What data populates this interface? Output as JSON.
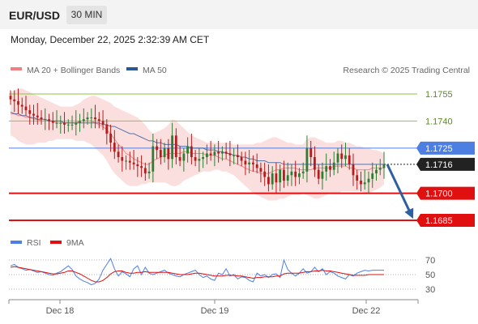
{
  "header": {
    "pair": "EUR/USD",
    "timeframe": "30 MIN"
  },
  "datetime": "Monday, December 22, 2025 2:32:39 AM CET",
  "legend": {
    "bollinger": "MA 20 + Bollinger Bands",
    "ma50": "MA 50"
  },
  "copyright": "Research © 2025 Trading Central",
  "rsi_legend": {
    "rsi": "RSI",
    "ma": "9MA"
  },
  "colors": {
    "bollinger": "#f08080",
    "ma50": "#2b5797",
    "resistance_green": "#8dc63f",
    "blue_line": "#4d7fe3",
    "support_red": "#e01010",
    "arrow": "#2e5fa3",
    "rsi": "#4d7fe3",
    "rsi_ma": "#e01010",
    "candle_up": "#2e7d32",
    "candle_down": "#b71c1c"
  },
  "chart_data": [
    {
      "type": "line",
      "title": "",
      "x_labels": [
        "Dec 18",
        "Dec 19",
        "Dec 22"
      ],
      "ylim": [
        1.1675,
        1.1775
      ],
      "levels": [
        {
          "label": "1.1755",
          "value": 1.1755,
          "kind": "resistance"
        },
        {
          "label": "1.1740",
          "value": 1.174,
          "kind": "resistance"
        },
        {
          "label": "1.1725",
          "value": 1.1725,
          "kind": "pivot"
        },
        {
          "label": "1.1716",
          "value": 1.1716,
          "kind": "last"
        },
        {
          "label": "1.1700",
          "value": 1.17,
          "kind": "support"
        },
        {
          "label": "1.1685",
          "value": 1.1685,
          "kind": "target"
        }
      ],
      "close": [
        1.1752,
        1.1751,
        1.1749,
        1.1748,
        1.1746,
        1.1744,
        1.1743,
        1.1742,
        1.1741,
        1.1741,
        1.174,
        1.1739,
        1.1739,
        1.1739,
        1.1738,
        1.1738,
        1.1738,
        1.1739,
        1.174,
        1.1741,
        1.1742,
        1.1742,
        1.1741,
        1.174,
        1.1738,
        1.1733,
        1.1728,
        1.1723,
        1.172,
        1.1718,
        1.1718,
        1.1717,
        1.1716,
        1.1715,
        1.1714,
        1.1711,
        1.1712,
        1.1726,
        1.1724,
        1.172,
        1.1725,
        1.1719,
        1.1732,
        1.172,
        1.1718,
        1.1722,
        1.1726,
        1.172,
        1.1718,
        1.1719,
        1.172,
        1.1722,
        1.1721,
        1.1723,
        1.1722,
        1.1723,
        1.1722,
        1.1721,
        1.1721,
        1.172,
        1.1718,
        1.1716,
        1.1717,
        1.1716,
        1.1714,
        1.1712,
        1.1709,
        1.1705,
        1.1711,
        1.1706,
        1.1713,
        1.1707,
        1.171,
        1.1712,
        1.1709,
        1.1711,
        1.1712,
        1.1725,
        1.172,
        1.1713,
        1.1708,
        1.1712,
        1.1715,
        1.1713,
        1.1717,
        1.1722,
        1.1719,
        1.1721,
        1.1716,
        1.171,
        1.1707,
        1.1705,
        1.1706,
        1.1708,
        1.1711,
        1.1713,
        1.1714,
        1.1716
      ],
      "ma20": [
        1.1744,
        1.1744,
        1.1743,
        1.1743,
        1.1742,
        1.1742,
        1.1741,
        1.1741,
        1.174,
        1.174,
        1.174,
        1.174,
        1.1739,
        1.1739,
        1.1739,
        1.1739,
        1.1739,
        1.1739,
        1.174,
        1.174,
        1.174,
        1.174,
        1.1739,
        1.1738,
        1.1737,
        1.1735,
        1.1733,
        1.173,
        1.1727,
        1.1725,
        1.1722,
        1.1721,
        1.1719,
        1.1718,
        1.1717,
        1.1716,
        1.1716,
        1.1718,
        1.1719,
        1.172,
        1.1721,
        1.1722,
        1.1722,
        1.1722,
        1.1722,
        1.1723,
        1.1723,
        1.1722,
        1.1722,
        1.1722,
        1.1722,
        1.1721,
        1.1721,
        1.1721,
        1.172,
        1.1719,
        1.1719,
        1.1718,
        1.1717,
        1.1716,
        1.1715,
        1.1714,
        1.1713,
        1.1712,
        1.1712,
        1.1711,
        1.1711,
        1.1711,
        1.1712,
        1.1713,
        1.1713,
        1.1714,
        1.1714,
        1.1714,
        1.1714,
        1.1713,
        1.1713,
        1.1713,
        1.1713,
        1.1714,
        1.1714,
        1.1714,
        1.1714,
        1.1714,
        1.1715,
        1.1715,
        1.1715,
        1.1715,
        1.1714,
        1.1714,
        1.1713,
        1.1713,
        1.1713,
        1.1713,
        1.1714,
        1.1714,
        1.1714,
        1.1714
      ],
      "bb_upper": [
        1.1756,
        1.1757,
        1.1758,
        1.1758,
        1.1757,
        1.1756,
        1.1755,
        1.1754,
        1.1753,
        1.1752,
        1.1751,
        1.175,
        1.1749,
        1.1748,
        1.1748,
        1.1748,
        1.1748,
        1.1749,
        1.175,
        1.1752,
        1.1753,
        1.1754,
        1.1754,
        1.1753,
        1.1752,
        1.1751,
        1.175,
        1.1748,
        1.1747,
        1.1746,
        1.1745,
        1.1744,
        1.1743,
        1.1742,
        1.174,
        1.1738,
        1.1735,
        1.1733,
        1.1734,
        1.1735,
        1.1736,
        1.1738,
        1.1741,
        1.174,
        1.1738,
        1.1736,
        1.1734,
        1.1732,
        1.1731,
        1.173,
        1.1729,
        1.1728,
        1.1728,
        1.1728,
        1.1728,
        1.1728,
        1.1728,
        1.1728,
        1.1727,
        1.1727,
        1.1727,
        1.1727,
        1.1727,
        1.1727,
        1.1728,
        1.1728,
        1.1729,
        1.173,
        1.1731,
        1.1731,
        1.173,
        1.1729,
        1.1728,
        1.1728,
        1.1727,
        1.1727,
        1.1727,
        1.173,
        1.1731,
        1.1731,
        1.173,
        1.1729,
        1.1728,
        1.1728,
        1.1728,
        1.1729,
        1.1729,
        1.1728,
        1.1728,
        1.1727,
        1.1726,
        1.1726,
        1.1725,
        1.1725,
        1.1724,
        1.1724,
        1.1723,
        1.1722
      ],
      "bb_lower": [
        1.1732,
        1.1731,
        1.1729,
        1.1728,
        1.1727,
        1.1727,
        1.1727,
        1.1728,
        1.1728,
        1.1728,
        1.1729,
        1.1729,
        1.173,
        1.173,
        1.173,
        1.173,
        1.173,
        1.1729,
        1.1729,
        1.1729,
        1.1728,
        1.1727,
        1.1725,
        1.1723,
        1.1721,
        1.1718,
        1.1714,
        1.1711,
        1.1709,
        1.1707,
        1.1705,
        1.1704,
        1.1704,
        1.1704,
        1.1705,
        1.1705,
        1.1706,
        1.1706,
        1.1706,
        1.1706,
        1.1706,
        1.1705,
        1.1704,
        1.1704,
        1.1705,
        1.1707,
        1.1708,
        1.1709,
        1.171,
        1.1711,
        1.1712,
        1.1712,
        1.1712,
        1.1713,
        1.1713,
        1.1712,
        1.1712,
        1.1711,
        1.171,
        1.1708,
        1.1706,
        1.1704,
        1.1702,
        1.17,
        1.1699,
        1.1698,
        1.1697,
        1.1696,
        1.1696,
        1.1696,
        1.1697,
        1.1697,
        1.1698,
        1.1699,
        1.1699,
        1.1699,
        1.17,
        1.1699,
        1.1698,
        1.1697,
        1.1697,
        1.1698,
        1.1699,
        1.17,
        1.17,
        1.17,
        1.1701,
        1.1701,
        1.1701,
        1.1701,
        1.1701,
        1.1701,
        1.17,
        1.17,
        1.1701,
        1.1702,
        1.1703,
        1.1705
      ],
      "ma50": [
        1.1745,
        1.1744,
        1.1744,
        1.1743,
        1.1743,
        1.1742,
        1.1742,
        1.1741,
        1.1741,
        1.1741,
        1.174,
        1.174,
        1.174,
        1.174,
        1.1739,
        1.1739,
        1.1739,
        1.1739,
        1.1739,
        1.1739,
        1.1739,
        1.1739,
        1.1739,
        1.1739,
        1.1738,
        1.1738,
        1.1737,
        1.1737,
        1.1736,
        1.1735,
        1.1734,
        1.1733,
        1.1733,
        1.1732,
        1.1731,
        1.173,
        1.1729,
        1.1729,
        1.1728,
        1.1728,
        1.1727,
        1.1727,
        1.1727,
        1.1727,
        1.1726,
        1.1726,
        1.1726,
        1.1725,
        1.1725,
        1.1725,
        1.1725,
        1.1724,
        1.1724,
        1.1724,
        1.1723,
        1.1723,
        1.1722,
        1.1722,
        1.1721,
        1.1721,
        1.172,
        1.172,
        1.1719,
        1.1719,
        1.1718,
        1.1718,
        1.1718,
        1.1717,
        1.1717,
        1.1717,
        1.1717,
        1.1716,
        1.1716,
        1.1716,
        1.1716,
        1.1716,
        1.1716,
        1.1716,
        1.1716,
        1.1716,
        1.1716,
        1.1716,
        1.1716,
        1.1716,
        1.1716,
        1.1716,
        1.1716,
        1.1716,
        1.1716,
        1.1716,
        1.1716,
        1.1716,
        1.1716,
        1.1716,
        1.1716,
        1.1716,
        1.1716,
        1.1716
      ],
      "forecast": {
        "from": 1.1716,
        "to": 1.1685
      }
    },
    {
      "type": "line",
      "title": "",
      "ylim": [
        20,
        80
      ],
      "y_ticks": [
        70,
        50,
        30
      ],
      "rsi": [
        62,
        64,
        60,
        58,
        56,
        57,
        55,
        53,
        54,
        52,
        50,
        49,
        52,
        54,
        58,
        62,
        57,
        48,
        44,
        41,
        39,
        36,
        38,
        44,
        56,
        64,
        72,
        58,
        48,
        54,
        51,
        47,
        58,
        62,
        50,
        60,
        52,
        50,
        52,
        54,
        56,
        52,
        50,
        48,
        47,
        50,
        52,
        54,
        56,
        50,
        46,
        48,
        44,
        42,
        52,
        50,
        58,
        48,
        50,
        44,
        47,
        46,
        42,
        40,
        52,
        48,
        50,
        46,
        50,
        51,
        46,
        70,
        57,
        52,
        48,
        52,
        58,
        52,
        54,
        60,
        54,
        58,
        50,
        54,
        52,
        48,
        46,
        44,
        50,
        48,
        52,
        54,
        56,
        55,
        56,
        56,
        56,
        56
      ],
      "ma9": [
        60,
        61,
        60,
        59,
        58,
        57,
        56,
        55,
        54,
        53,
        52,
        51,
        51,
        52,
        53,
        55,
        55,
        53,
        51,
        48,
        45,
        42,
        40,
        40,
        42,
        46,
        51,
        54,
        55,
        55,
        53,
        52,
        52,
        53,
        53,
        54,
        53,
        53,
        53,
        53,
        53,
        53,
        52,
        51,
        50,
        50,
        50,
        51,
        52,
        52,
        51,
        50,
        49,
        48,
        48,
        48,
        49,
        49,
        49,
        48,
        48,
        47,
        46,
        45,
        46,
        46,
        47,
        47,
        47,
        48,
        48,
        51,
        52,
        52,
        52,
        52,
        53,
        54,
        54,
        55,
        55,
        56,
        55,
        55,
        54,
        53,
        52,
        51,
        50,
        49,
        49,
        49,
        49,
        50,
        50,
        50,
        50,
        50
      ]
    }
  ]
}
